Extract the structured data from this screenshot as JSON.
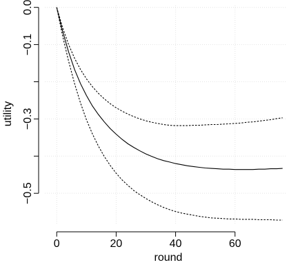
{
  "chart_data": {
    "type": "line",
    "title": "",
    "xlabel": "round",
    "ylabel": "utility",
    "xlim": [
      -4,
      77
    ],
    "ylim": [
      -0.585,
      0.005
    ],
    "grid": true,
    "x_ticks": [
      0,
      20,
      40,
      60
    ],
    "x_tick_labels": [
      "0",
      "20",
      "40",
      "60"
    ],
    "y_ticks": [
      0.0,
      -0.1,
      -0.2,
      -0.3,
      -0.4,
      -0.5
    ],
    "y_tick_labels": [
      "0.0",
      "−0.1",
      "",
      "−0.3",
      "",
      "−0.5"
    ],
    "series": [
      {
        "style": "solid",
        "x": [
          0,
          2,
          4,
          6,
          8,
          10,
          12,
          14,
          16,
          18,
          20,
          22,
          24,
          26,
          28,
          30,
          32,
          34,
          36,
          38,
          40,
          42,
          44,
          46,
          48,
          50,
          52,
          54,
          56,
          58,
          60,
          62,
          64,
          66,
          68,
          70,
          72,
          74,
          76
        ],
        "values": [
          0.0,
          -0.065,
          -0.12,
          -0.167,
          -0.205,
          -0.237,
          -0.265,
          -0.288,
          -0.308,
          -0.326,
          -0.341,
          -0.355,
          -0.367,
          -0.377,
          -0.386,
          -0.394,
          -0.401,
          -0.407,
          -0.412,
          -0.416,
          -0.42,
          -0.423,
          -0.426,
          -0.428,
          -0.43,
          -0.432,
          -0.433,
          -0.434,
          -0.435,
          -0.435,
          -0.436,
          -0.436,
          -0.436,
          -0.436,
          -0.435,
          -0.435,
          -0.434,
          -0.434,
          -0.433
        ]
      },
      {
        "style": "dashed",
        "x": [
          0,
          2,
          4,
          6,
          8,
          10,
          12,
          14,
          16,
          18,
          20,
          22,
          24,
          26,
          28,
          30,
          32,
          34,
          36,
          38,
          40,
          42,
          44,
          46,
          48,
          50,
          52,
          54,
          56,
          58,
          60,
          62,
          64,
          66,
          68,
          70,
          72,
          74,
          76
        ],
        "values": [
          0.0,
          -0.055,
          -0.1,
          -0.137,
          -0.167,
          -0.192,
          -0.213,
          -0.231,
          -0.246,
          -0.259,
          -0.27,
          -0.279,
          -0.287,
          -0.294,
          -0.3,
          -0.305,
          -0.309,
          -0.312,
          -0.315,
          -0.317,
          -0.318,
          -0.318,
          -0.318,
          -0.317,
          -0.317,
          -0.316,
          -0.315,
          -0.315,
          -0.314,
          -0.313,
          -0.312,
          -0.311,
          -0.309,
          -0.308,
          -0.306,
          -0.304,
          -0.302,
          -0.299,
          -0.297
        ]
      },
      {
        "style": "dashed",
        "x": [
          0,
          2,
          4,
          6,
          8,
          10,
          12,
          14,
          16,
          18,
          20,
          22,
          24,
          26,
          28,
          30,
          32,
          34,
          36,
          38,
          40,
          42,
          44,
          46,
          48,
          50,
          52,
          54,
          56,
          58,
          60,
          62,
          64,
          66,
          68,
          70,
          72,
          74,
          76
        ],
        "values": [
          0.0,
          -0.078,
          -0.145,
          -0.205,
          -0.257,
          -0.302,
          -0.34,
          -0.373,
          -0.401,
          -0.425,
          -0.446,
          -0.464,
          -0.479,
          -0.493,
          -0.504,
          -0.514,
          -0.523,
          -0.531,
          -0.538,
          -0.544,
          -0.549,
          -0.553,
          -0.556,
          -0.559,
          -0.562,
          -0.564,
          -0.566,
          -0.567,
          -0.568,
          -0.569,
          -0.569,
          -0.57,
          -0.57,
          -0.57,
          -0.571,
          -0.571,
          -0.571,
          -0.572,
          -0.572
        ]
      }
    ]
  }
}
